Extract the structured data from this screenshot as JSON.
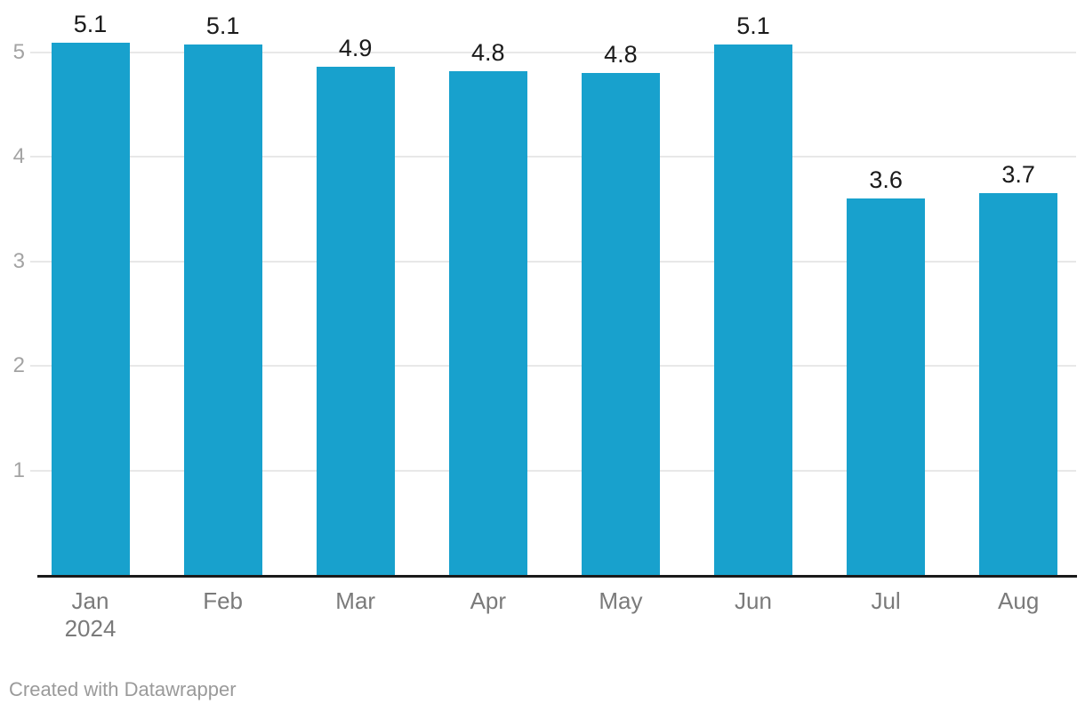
{
  "page": {
    "background": "#ffffff"
  },
  "footer": {
    "attribution": "Created with Datawrapper"
  },
  "chart_data": {
    "type": "bar",
    "title": "",
    "categories": [
      "Jan",
      "Feb",
      "Mar",
      "Apr",
      "May",
      "Jun",
      "Jul",
      "Aug"
    ],
    "x_axis_year": {
      "index": 0,
      "text": "2024"
    },
    "values": [
      5.1,
      5.1,
      4.9,
      4.8,
      4.8,
      5.1,
      3.6,
      3.7
    ],
    "value_labels": [
      "5.1",
      "5.1",
      "4.9",
      "4.8",
      "4.8",
      "5.1",
      "3.6",
      "3.7"
    ],
    "precise_values": [
      5.09,
      5.08,
      4.86,
      4.82,
      4.8,
      5.08,
      3.6,
      3.65
    ],
    "y_ticks": [
      1,
      2,
      3,
      4,
      5
    ],
    "ylim": [
      0,
      5.5
    ],
    "grid": true,
    "legend": "none",
    "xlabel": "",
    "ylabel": "",
    "colors": {
      "bar": "#18a1cd",
      "value_label": "#1a1a1a",
      "x_tick_label": "#7a7a7a",
      "y_tick_label": "#a3a3a3",
      "gridline": "#e8e8e8",
      "baseline": "#1a1a1a",
      "attribution": "#9a9a9a"
    }
  }
}
